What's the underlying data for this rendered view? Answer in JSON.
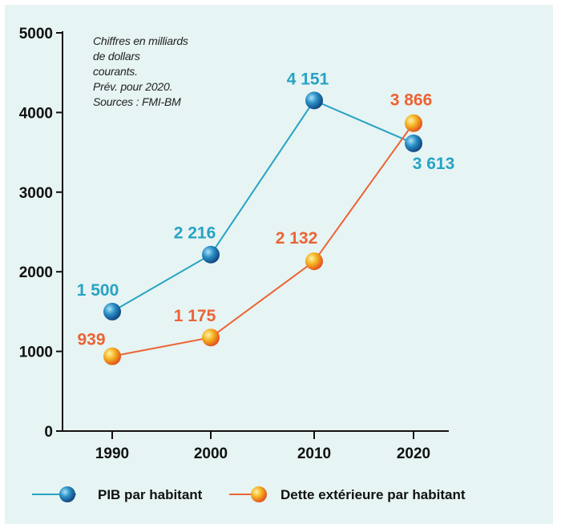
{
  "chart_data": {
    "type": "line",
    "x": [
      1990,
      2000,
      2010,
      2020
    ],
    "x_labels": [
      "1990",
      "2000",
      "2010",
      "2020"
    ],
    "ylim": [
      0,
      5000
    ],
    "y_ticks": [
      0,
      1000,
      2000,
      3000,
      4000,
      5000
    ],
    "y_tick_labels": [
      "0",
      "1000",
      "2000",
      "3000",
      "4000",
      "5000"
    ],
    "grid": false,
    "legend_position": "bottom",
    "notes": [
      "Chiffres en milliards",
      "de dollars",
      "courants.",
      "Prév. pour 2020.",
      "Sources : FMI-BM"
    ],
    "series": [
      {
        "name": "PIB par habitant",
        "values": [
          1500,
          2216,
          4151,
          3613
        ],
        "labels": [
          "1 500",
          "2 216",
          "4 151",
          "3 613"
        ],
        "color": "#27a3c4",
        "marker_color": "#1e7fb4"
      },
      {
        "name": "Dette extérieure par habitant",
        "values": [
          939,
          1175,
          2132,
          3866
        ],
        "labels": [
          "939",
          "1 175",
          "2 132",
          "3 866"
        ],
        "color": "#ec6334",
        "marker_color": "#f2a71f"
      }
    ]
  }
}
